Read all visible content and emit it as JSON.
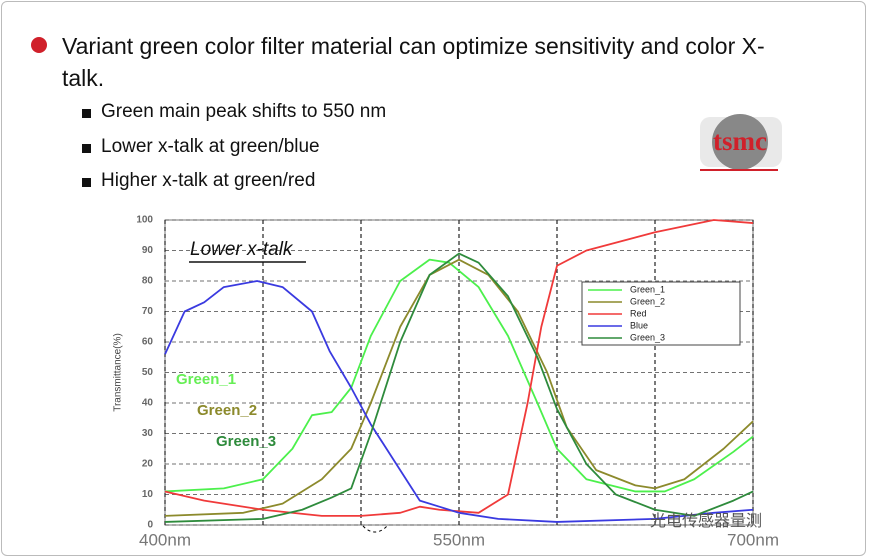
{
  "slide": {
    "bullet": "Variant green color filter material can optimize sensitivity and color X-talk.",
    "sub_bullets": [
      "Green main peak shifts to 550 nm",
      "Lower x-talk at green/blue",
      "Higher x-talk at green/red"
    ],
    "logo": "tsmc",
    "watermark": "光电传感器量测"
  },
  "chart_data": {
    "type": "line",
    "ylabel": "Transmittance(%)",
    "annotations": [
      "Lower x-talk",
      "Green_1",
      "Green_2",
      "Green_3"
    ],
    "xlim": [
      400,
      700
    ],
    "xticks": [
      {
        "value": 400,
        "label": "400nm"
      },
      {
        "value": 550,
        "label": "550nm"
      },
      {
        "value": 700,
        "label": "700nm"
      }
    ],
    "xgrid": [
      450,
      500,
      600,
      650
    ],
    "ylim": [
      0,
      100
    ],
    "yticks": [
      0,
      10,
      20,
      30,
      40,
      50,
      60,
      70,
      80,
      90,
      100
    ],
    "grid": true,
    "legend": "upper right",
    "series": [
      {
        "name": "Green_1",
        "color": "#4cf04c",
        "x": [
          400,
          430,
          450,
          465,
          475,
          485,
          495,
          505,
          520,
          535,
          545,
          560,
          575,
          590,
          600,
          615,
          640,
          655,
          670,
          690,
          700
        ],
        "values": [
          11,
          12,
          15,
          25,
          36,
          37,
          45,
          62,
          80,
          87,
          86,
          78,
          62,
          40,
          25,
          15,
          11,
          11,
          15,
          24,
          29
        ]
      },
      {
        "name": "Green_2",
        "color": "#8c8a2c",
        "x": [
          400,
          440,
          460,
          480,
          495,
          505,
          520,
          535,
          550,
          565,
          580,
          595,
          605,
          620,
          640,
          650,
          665,
          685,
          700
        ],
        "values": [
          3,
          4,
          7,
          15,
          25,
          40,
          65,
          82,
          87,
          82,
          70,
          50,
          32,
          18,
          13,
          12,
          15,
          25,
          34
        ]
      },
      {
        "name": "Red",
        "color": "#f03a3a",
        "x": [
          400,
          420,
          450,
          480,
          500,
          520,
          530,
          540,
          560,
          575,
          585,
          592,
          600,
          615,
          650,
          680,
          700
        ],
        "values": [
          11,
          8,
          5,
          3,
          3,
          4,
          6,
          5,
          4,
          10,
          40,
          65,
          85,
          90,
          96,
          100,
          99
        ]
      },
      {
        "name": "Blue",
        "color": "#3a3ae0",
        "x": [
          400,
          410,
          420,
          430,
          447,
          460,
          475,
          484,
          495,
          505,
          520,
          530,
          540,
          550,
          570,
          600,
          650,
          680,
          700
        ],
        "values": [
          56,
          70,
          73,
          78,
          80,
          78,
          70,
          57,
          45,
          33,
          18,
          8,
          6,
          4,
          2,
          1,
          2,
          4,
          5
        ]
      },
      {
        "name": "Green_3",
        "color": "#2e8b3c",
        "x": [
          400,
          450,
          470,
          485,
          495,
          505,
          520,
          535,
          550,
          560,
          575,
          590,
          600,
          615,
          630,
          650,
          670,
          690,
          700
        ],
        "values": [
          1,
          2,
          5,
          9,
          12,
          30,
          60,
          82,
          89,
          86,
          75,
          55,
          38,
          20,
          10,
          5,
          3,
          8,
          11
        ]
      }
    ]
  }
}
